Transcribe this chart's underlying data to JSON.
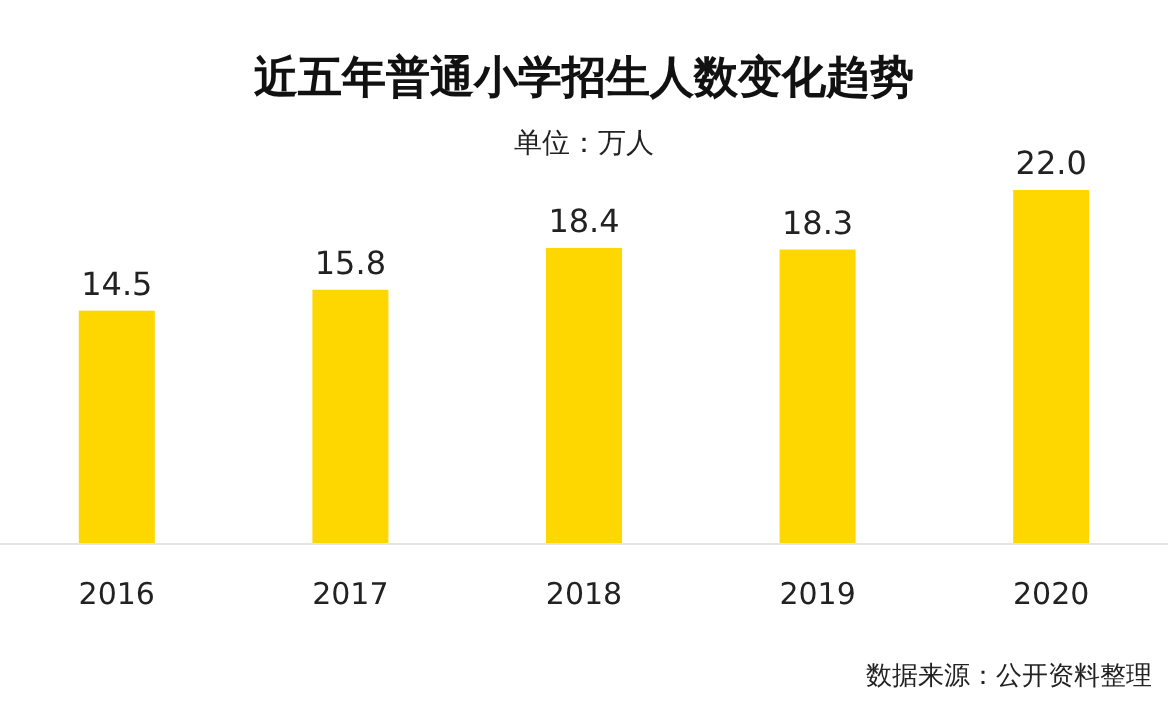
{
  "chart_data": {
    "type": "bar",
    "title": "近五年普通小学招生人数变化趋势",
    "subtitle": "单位：万人",
    "categories": [
      "2016",
      "2017",
      "2018",
      "2019",
      "2020"
    ],
    "values": [
      14.5,
      15.8,
      18.4,
      18.3,
      22.0
    ],
    "value_labels": [
      "14.5",
      "15.8",
      "18.4",
      "18.3",
      "22.0"
    ],
    "color": "#ffd700",
    "annotations": [
      "数据来源：公开资料整理"
    ]
  }
}
